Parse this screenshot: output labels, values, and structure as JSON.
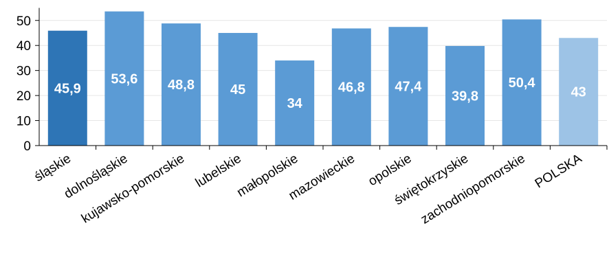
{
  "chart_data": {
    "type": "bar",
    "title": "",
    "xlabel": "",
    "ylabel": "",
    "ylim": [
      0,
      55
    ],
    "yticks": [
      0,
      10,
      20,
      30,
      40,
      50
    ],
    "grid": true,
    "categories": [
      "śląskie",
      "dolnośląskie",
      "kujawsko-pomorskie",
      "lubelskie",
      "małopolskie",
      "mazowieckie",
      "opolskie",
      "świętokrzyskie",
      "zachodniopomorskie",
      "POLSKA"
    ],
    "values": [
      45.9,
      53.6,
      48.8,
      45,
      34,
      46.8,
      47.4,
      39.8,
      50.4,
      43
    ],
    "data_labels": [
      "45,9",
      "53,6",
      "48,8",
      "45",
      "34",
      "46,8",
      "47,4",
      "39,8",
      "50,4",
      "43"
    ],
    "bar_colors": [
      "#2E75B6",
      "#5B9BD5",
      "#5B9BD5",
      "#5B9BD5",
      "#5B9BD5",
      "#5B9BD5",
      "#5B9BD5",
      "#5B9BD5",
      "#5B9BD5",
      "#9DC3E6"
    ]
  }
}
